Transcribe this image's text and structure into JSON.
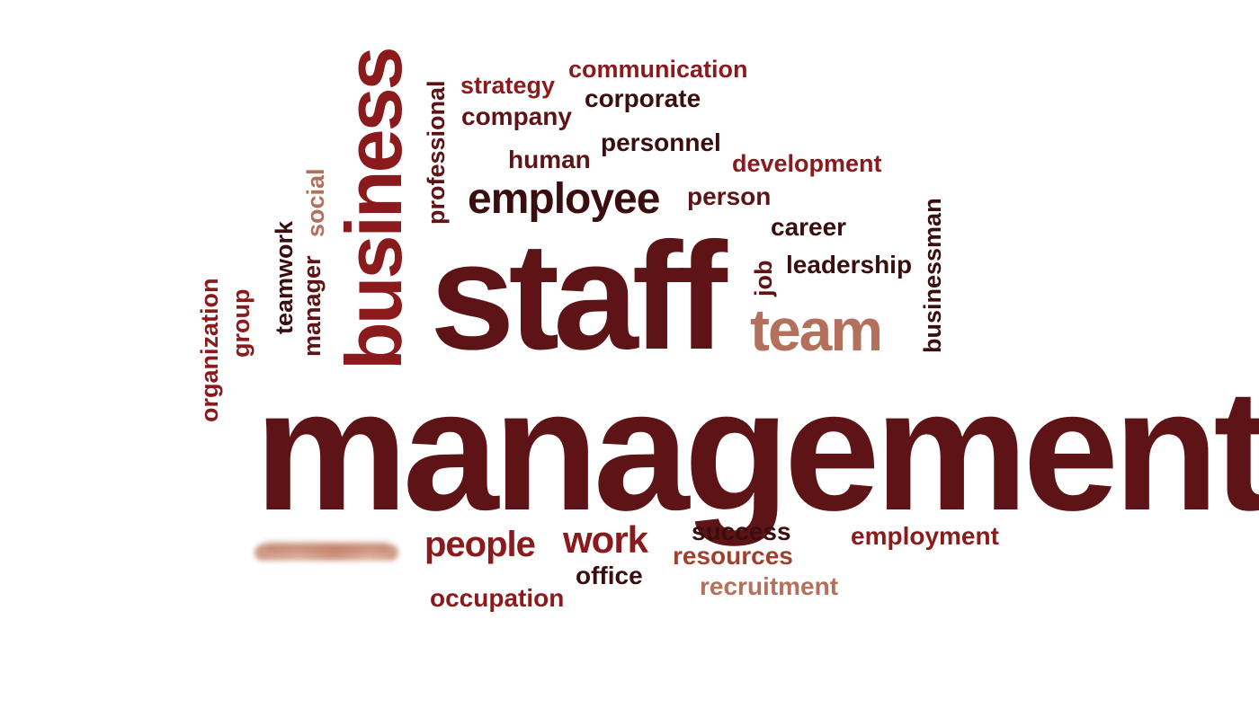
{
  "word_cloud": {
    "words": {
      "management": "management",
      "staff": "staff",
      "business": "business",
      "team": "team",
      "employee": "employee",
      "people": "people",
      "work": "work",
      "communication": "communication",
      "strategy": "strategy",
      "corporate": "corporate",
      "company": "company",
      "personnel": "personnel",
      "human": "human",
      "development": "development",
      "person": "person",
      "career": "career",
      "leadership": "leadership",
      "professional": "professional",
      "social": "social",
      "teamwork": "teamwork",
      "manager": "manager",
      "group": "group",
      "organization": "organization",
      "job": "job",
      "businessman": "businessman",
      "success": "success",
      "resources": "resources",
      "employment": "employment",
      "office": "office",
      "recruitment": "recruitment",
      "occupation": "occupation"
    },
    "colors": {
      "maroon": "#5e1416",
      "red": "#8a1a1c",
      "dark": "#3a0d0f",
      "tan": "#b3705c",
      "rust": "#a3402c"
    }
  }
}
